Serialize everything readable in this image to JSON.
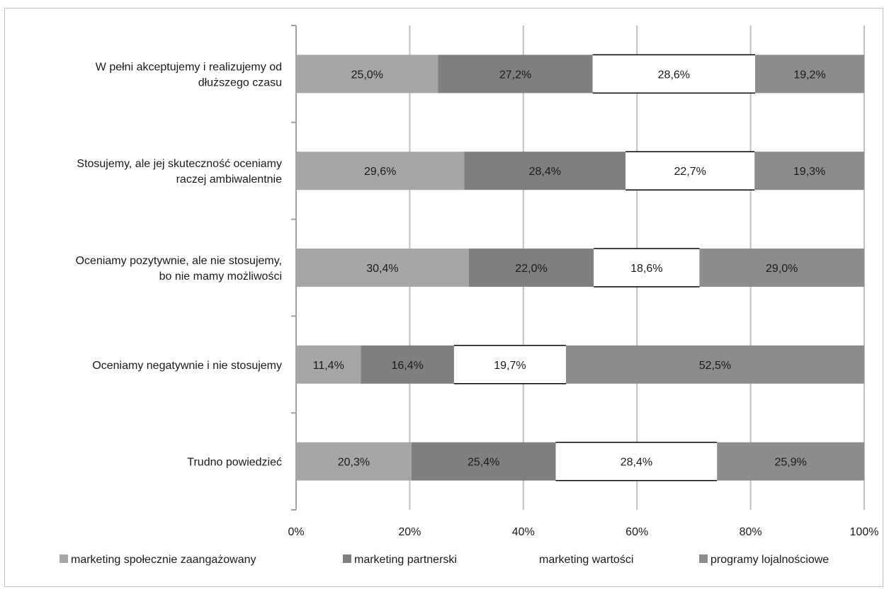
{
  "chart_data": {
    "type": "bar",
    "orientation": "horizontal",
    "stacked": "percent",
    "title": "",
    "xlabel": "",
    "ylabel": "",
    "xlim": [
      0,
      100
    ],
    "x_ticks": [
      "0%",
      "20%",
      "40%",
      "60%",
      "80%",
      "100%"
    ],
    "grid": true,
    "legend_position": "bottom",
    "categories": [
      [
        "W pełni akceptujemy i realizujemy od",
        "dłuższego czasu"
      ],
      [
        "Stosujemy, ale jej skuteczność oceniamy",
        "raczej ambiwalentnie"
      ],
      [
        "Oceniamy pozytywnie, ale nie stosujemy,",
        "bo nie mamy możliwości"
      ],
      [
        "Oceniamy negatywnie i nie stosujemy"
      ],
      [
        "Trudno powiedzieć"
      ]
    ],
    "series": [
      {
        "name": "marketing społecznie zaangażowany",
        "color": "#a6a6a6",
        "values": [
          25.0,
          29.6,
          30.4,
          11.4,
          20.3
        ],
        "labels": [
          "25,0%",
          "29,6%",
          "30,4%",
          "11,4%",
          "20,3%"
        ]
      },
      {
        "name": "marketing partnerski",
        "color": "#7f7f7f",
        "values": [
          27.2,
          28.4,
          22.0,
          16.4,
          25.4
        ],
        "labels": [
          "27,2%",
          "28,4%",
          "22,0%",
          "16,4%",
          "25,4%"
        ]
      },
      {
        "name": "marketing wartości",
        "color": "#ffffff",
        "values": [
          28.6,
          22.7,
          18.6,
          19.7,
          28.4
        ],
        "labels": [
          "28,6%",
          "22,7%",
          "18,6%",
          "19,7%",
          "28,4%"
        ]
      },
      {
        "name": "programy lojalnościowe",
        "color": "#8c8c8c",
        "values": [
          19.2,
          19.3,
          29.0,
          52.5,
          25.9
        ],
        "labels": [
          "19,2%",
          "19,3%",
          "29,0%",
          "52,5%",
          "25,9%"
        ]
      }
    ]
  }
}
